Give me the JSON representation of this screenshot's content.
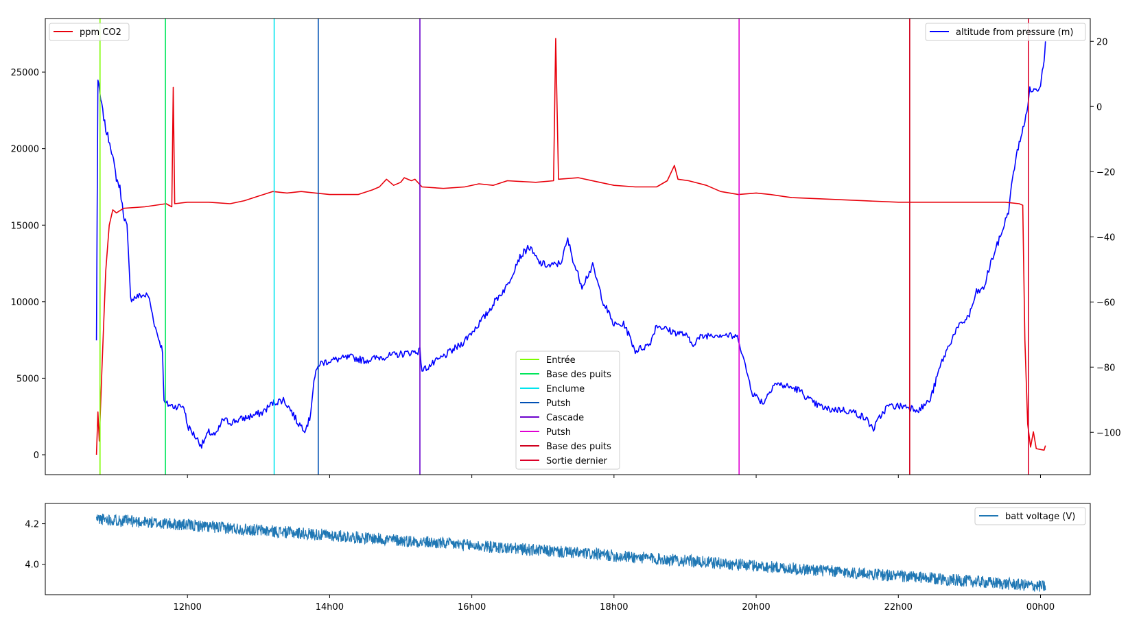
{
  "chart_data": [
    {
      "type": "line",
      "time_axis_ticks": [
        "12h00",
        "14h00",
        "16h00",
        "18h00",
        "20h00",
        "22h00",
        "00h00"
      ],
      "x_range_hours": [
        10.0,
        24.7
      ],
      "left_axis": {
        "ylim": [
          -1300,
          28500
        ],
        "ticks": [
          0,
          5000,
          10000,
          15000,
          20000,
          25000
        ],
        "tick_labels": [
          "0",
          "5000",
          "10000",
          "15000",
          "20000",
          "25000"
        ]
      },
      "right_axis": {
        "ylim": [
          -113,
          27
        ],
        "ticks": [
          -100,
          -80,
          -60,
          -40,
          -20,
          0,
          20
        ],
        "tick_labels": [
          "−100",
          "−80",
          "−60",
          "−40",
          "−20",
          "0",
          "20"
        ]
      },
      "series": [
        {
          "name": "ppm CO2",
          "axis": "left",
          "color": "#e8000b",
          "points": [
            [
              10.72,
              0
            ],
            [
              10.74,
              2800
            ],
            [
              10.76,
              900
            ],
            [
              10.8,
              6000
            ],
            [
              10.85,
              12000
            ],
            [
              10.9,
              15000
            ],
            [
              10.95,
              16000
            ],
            [
              11.0,
              15800
            ],
            [
              11.1,
              16100
            ],
            [
              11.4,
              16200
            ],
            [
              11.7,
              16400
            ],
            [
              11.78,
              16200
            ],
            [
              11.8,
              24000
            ],
            [
              11.82,
              16400
            ],
            [
              12.0,
              16500
            ],
            [
              12.3,
              16500
            ],
            [
              12.6,
              16400
            ],
            [
              12.8,
              16600
            ],
            [
              13.0,
              16900
            ],
            [
              13.2,
              17200
            ],
            [
              13.4,
              17100
            ],
            [
              13.6,
              17200
            ],
            [
              13.8,
              17100
            ],
            [
              14.0,
              17000
            ],
            [
              14.4,
              17000
            ],
            [
              14.6,
              17300
            ],
            [
              14.7,
              17500
            ],
            [
              14.8,
              18000
            ],
            [
              14.9,
              17600
            ],
            [
              15.0,
              17800
            ],
            [
              15.05,
              18100
            ],
            [
              15.15,
              17900
            ],
            [
              15.2,
              18000
            ],
            [
              15.3,
              17500
            ],
            [
              15.6,
              17400
            ],
            [
              15.9,
              17500
            ],
            [
              16.1,
              17700
            ],
            [
              16.3,
              17600
            ],
            [
              16.5,
              17900
            ],
            [
              16.9,
              17800
            ],
            [
              17.15,
              17900
            ],
            [
              17.18,
              27200
            ],
            [
              17.22,
              18000
            ],
            [
              17.5,
              18100
            ],
            [
              17.8,
              17800
            ],
            [
              18.0,
              17600
            ],
            [
              18.3,
              17500
            ],
            [
              18.6,
              17500
            ],
            [
              18.75,
              17900
            ],
            [
              18.85,
              18900
            ],
            [
              18.9,
              18000
            ],
            [
              19.05,
              17900
            ],
            [
              19.3,
              17600
            ],
            [
              19.5,
              17200
            ],
            [
              19.75,
              17000
            ],
            [
              20.0,
              17100
            ],
            [
              20.2,
              17000
            ],
            [
              20.5,
              16800
            ],
            [
              21.0,
              16700
            ],
            [
              21.5,
              16600
            ],
            [
              22.0,
              16500
            ],
            [
              22.5,
              16500
            ],
            [
              23.0,
              16500
            ],
            [
              23.2,
              16500
            ],
            [
              23.5,
              16500
            ],
            [
              23.7,
              16400
            ],
            [
              23.75,
              16300
            ],
            [
              23.78,
              7500
            ],
            [
              23.82,
              2000
            ],
            [
              23.86,
              500
            ],
            [
              23.9,
              1500
            ],
            [
              23.94,
              400
            ],
            [
              24.05,
              300
            ],
            [
              24.07,
              600
            ]
          ]
        },
        {
          "name": "altitude from pressure (m)",
          "axis": "right",
          "color": "#0000ff",
          "points": [
            [
              10.72,
              -72
            ],
            [
              10.74,
              8
            ],
            [
              10.78,
              2
            ],
            [
              10.85,
              -7
            ],
            [
              10.92,
              -12
            ],
            [
              11.0,
              -22
            ],
            [
              11.05,
              -25
            ],
            [
              11.1,
              -33
            ],
            [
              11.15,
              -37
            ],
            [
              11.2,
              -59
            ],
            [
              11.35,
              -58
            ],
            [
              11.45,
              -58
            ],
            [
              11.55,
              -68
            ],
            [
              11.65,
              -75
            ],
            [
              11.67,
              -91
            ],
            [
              11.8,
              -92
            ],
            [
              11.95,
              -92
            ],
            [
              12.0,
              -98
            ],
            [
              12.1,
              -101
            ],
            [
              12.2,
              -104
            ],
            [
              12.3,
              -100
            ],
            [
              12.4,
              -101
            ],
            [
              12.5,
              -96
            ],
            [
              12.6,
              -97
            ],
            [
              12.75,
              -96
            ],
            [
              12.9,
              -95
            ],
            [
              13.05,
              -94
            ],
            [
              13.2,
              -91
            ],
            [
              13.35,
              -90
            ],
            [
              13.45,
              -93
            ],
            [
              13.55,
              -97
            ],
            [
              13.65,
              -99
            ],
            [
              13.72,
              -96
            ],
            [
              13.78,
              -84
            ],
            [
              13.85,
              -79
            ],
            [
              14.0,
              -78
            ],
            [
              14.3,
              -77
            ],
            [
              14.5,
              -78
            ],
            [
              14.7,
              -77
            ],
            [
              15.0,
              -76
            ],
            [
              15.27,
              -75
            ],
            [
              15.3,
              -81
            ],
            [
              15.45,
              -79
            ],
            [
              15.65,
              -76
            ],
            [
              15.85,
              -73
            ],
            [
              16.05,
              -68
            ],
            [
              16.2,
              -64
            ],
            [
              16.35,
              -59
            ],
            [
              16.5,
              -55
            ],
            [
              16.65,
              -47
            ],
            [
              16.8,
              -43
            ],
            [
              16.95,
              -48
            ],
            [
              17.1,
              -49
            ],
            [
              17.25,
              -48
            ],
            [
              17.35,
              -41
            ],
            [
              17.45,
              -49
            ],
            [
              17.55,
              -55
            ],
            [
              17.7,
              -49
            ],
            [
              17.85,
              -60
            ],
            [
              18.0,
              -67
            ],
            [
              18.15,
              -67
            ],
            [
              18.3,
              -75
            ],
            [
              18.5,
              -73
            ],
            [
              18.6,
              -67
            ],
            [
              18.8,
              -69
            ],
            [
              19.0,
              -70
            ],
            [
              19.1,
              -73
            ],
            [
              19.2,
              -71
            ],
            [
              19.35,
              -70
            ],
            [
              19.55,
              -70
            ],
            [
              19.75,
              -71
            ],
            [
              19.85,
              -80
            ],
            [
              19.95,
              -88
            ],
            [
              20.1,
              -91
            ],
            [
              20.25,
              -85
            ],
            [
              20.45,
              -86
            ],
            [
              20.6,
              -87
            ],
            [
              20.8,
              -91
            ],
            [
              21.0,
              -93
            ],
            [
              21.2,
              -93
            ],
            [
              21.4,
              -94
            ],
            [
              21.55,
              -96
            ],
            [
              21.65,
              -99
            ],
            [
              21.75,
              -95
            ],
            [
              21.85,
              -92
            ],
            [
              22.1,
              -92
            ],
            [
              22.3,
              -93
            ],
            [
              22.45,
              -90
            ],
            [
              22.6,
              -79
            ],
            [
              22.8,
              -69
            ],
            [
              23.0,
              -64
            ],
            [
              23.1,
              -57
            ],
            [
              23.2,
              -56
            ],
            [
              23.3,
              -48
            ],
            [
              23.45,
              -39
            ],
            [
              23.55,
              -32
            ],
            [
              23.62,
              -20
            ],
            [
              23.7,
              -11
            ],
            [
              23.78,
              -5
            ],
            [
              23.85,
              5
            ],
            [
              23.95,
              5
            ],
            [
              24.0,
              7
            ],
            [
              24.05,
              15
            ],
            [
              24.07,
              20
            ]
          ]
        }
      ],
      "legend_left": {
        "placement": "upper-left",
        "entries": [
          "ppm CO2"
        ]
      },
      "legend_right": {
        "placement": "upper-right",
        "entries": [
          "altitude from pressure (m)"
        ]
      },
      "event_markers": [
        {
          "name": "Entrée",
          "x": 10.77,
          "color": "#7cfc00"
        },
        {
          "name": "Base des puits",
          "x": 11.69,
          "color": "#00e65a"
        },
        {
          "name": "Enclume",
          "x": 13.22,
          "color": "#00e5ee"
        },
        {
          "name": "Putsh",
          "x": 13.84,
          "color": "#0050b4"
        },
        {
          "name": "Cascade",
          "x": 15.27,
          "color": "#6a00cc"
        },
        {
          "name": "Putsh",
          "x": 19.76,
          "color": "#e000d2"
        },
        {
          "name": "Base des puits",
          "x": 22.16,
          "color": "#d0001e"
        },
        {
          "name": "Sortie dernier",
          "x": 23.83,
          "color": "#dc0028"
        }
      ],
      "legend_events": {
        "placement": "lower-center"
      }
    },
    {
      "type": "line",
      "x_range_hours": [
        10.0,
        24.7
      ],
      "ylim": [
        3.85,
        4.3
      ],
      "ticks": [
        4.0,
        4.2
      ],
      "tick_labels": [
        "4.0",
        "4.2"
      ],
      "series": [
        {
          "name": "batt voltage (V)",
          "color": "#1f77b4",
          "start": [
            10.72,
            4.225
          ],
          "end": [
            24.07,
            3.89
          ],
          "noise_amplitude": 0.03
        }
      ],
      "legend": {
        "placement": "upper-right",
        "entries": [
          "batt voltage (V)"
        ]
      }
    }
  ]
}
